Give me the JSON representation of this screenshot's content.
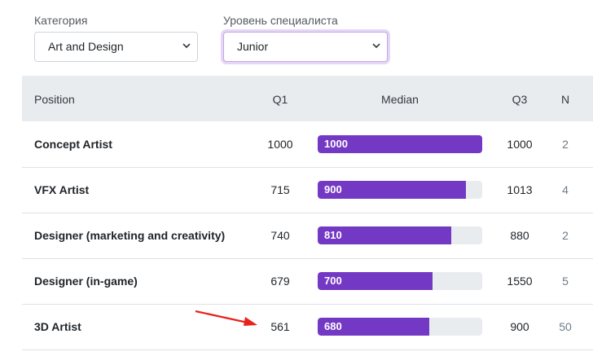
{
  "filters": {
    "category_label": "Категория",
    "category_value": "Art and Design",
    "level_label": "Уровень специалиста",
    "level_value": "Junior"
  },
  "table": {
    "headers": {
      "position": "Position",
      "q1": "Q1",
      "median": "Median",
      "q3": "Q3",
      "n": "N"
    },
    "bar_max": 1000,
    "rows": [
      {
        "position": "Concept Artist",
        "q1": "1000",
        "median": "1000",
        "q3": "1000",
        "n": "2"
      },
      {
        "position": "VFX Artist",
        "q1": "715",
        "median": "900",
        "q3": "1013",
        "n": "4"
      },
      {
        "position": "Designer (marketing and creativity)",
        "q1": "740",
        "median": "810",
        "q3": "880",
        "n": "2"
      },
      {
        "position": "Designer (in-game)",
        "q1": "679",
        "median": "700",
        "q3": "1550",
        "n": "5"
      },
      {
        "position": "3D Artist",
        "q1": "561",
        "median": "680",
        "q3": "900",
        "n": "50"
      }
    ]
  },
  "colors": {
    "bar": "#7439c4",
    "arrow": "#e8231e"
  },
  "icons": {
    "select_chevron": "chevron-down-icon",
    "annotation": "red-arrow-icon"
  }
}
